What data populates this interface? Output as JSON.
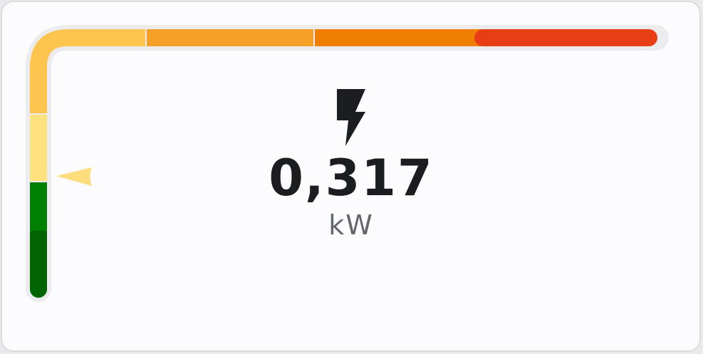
{
  "sensor": {
    "icon": "lightning-bolt-icon",
    "value": "0,317",
    "unit": "kW",
    "level_fraction": 0.22
  },
  "colors": {
    "card_background": "#fcfcfe",
    "track": "#ececee",
    "value_text": "#1b1d20",
    "unit_text": "#63666b",
    "pointer": "#fedd7c",
    "segments": [
      "#006400",
      "#008000",
      "#fee27f",
      "#fec54e",
      "#f6a027",
      "#ef7f00",
      "#e73e16"
    ]
  }
}
